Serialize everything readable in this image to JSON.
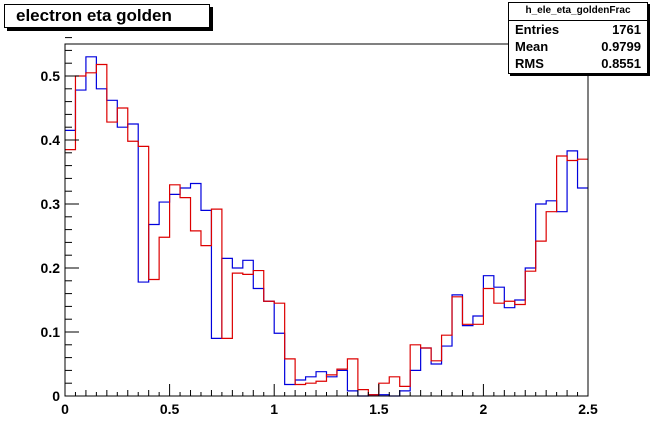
{
  "title": "electron eta golden",
  "stats": {
    "name": "h_ele_eta_goldenFrac",
    "rows": [
      {
        "label": "Entries",
        "value": "1761"
      },
      {
        "label": "Mean",
        "value": "0.9799"
      },
      {
        "label": "RMS",
        "value": "0.8551"
      }
    ]
  },
  "colors": {
    "blue": "#0000dd",
    "red": "#dd0000",
    "frame": "#000000"
  },
  "chart_data": {
    "type": "step-histogram",
    "title": "electron eta golden",
    "xlabel": "",
    "ylabel": "",
    "xlim": [
      0,
      2.5
    ],
    "ylim": [
      0,
      0.55
    ],
    "grid": false,
    "bin_width": 0.05,
    "x_ticks": [
      {
        "v": 0,
        "label": "0"
      },
      {
        "v": 0.5,
        "label": "0.5"
      },
      {
        "v": 1,
        "label": "1"
      },
      {
        "v": 1.5,
        "label": "1.5"
      },
      {
        "v": 2,
        "label": "2"
      },
      {
        "v": 2.5,
        "label": "2.5"
      }
    ],
    "y_ticks": [
      {
        "v": 0,
        "label": "0"
      },
      {
        "v": 0.1,
        "label": "0.1"
      },
      {
        "v": 0.2,
        "label": "0.2"
      },
      {
        "v": 0.3,
        "label": "0.3"
      },
      {
        "v": 0.4,
        "label": "0.4"
      },
      {
        "v": 0.5,
        "label": "0.5"
      }
    ],
    "series": [
      {
        "color": "#0000dd",
        "values": [
          0.415,
          0.478,
          0.53,
          0.48,
          0.462,
          0.42,
          0.425,
          0.178,
          0.268,
          0.303,
          0.315,
          0.325,
          0.332,
          0.29,
          0.09,
          0.215,
          0.2,
          0.212,
          0.168,
          0.148,
          0.098,
          0.018,
          0.025,
          0.03,
          0.038,
          0.03,
          0.04,
          0.008,
          0.0,
          0.002,
          0.002,
          0.0,
          0.008,
          0.04,
          0.075,
          0.05,
          0.078,
          0.158,
          0.11,
          0.125,
          0.188,
          0.17,
          0.138,
          0.15,
          0.2,
          0.3,
          0.305,
          0.288,
          0.383,
          0.325
        ]
      },
      {
        "color": "#dd0000",
        "values": [
          0.385,
          0.5,
          0.505,
          0.518,
          0.428,
          0.45,
          0.398,
          0.39,
          0.182,
          0.248,
          0.33,
          0.31,
          0.258,
          0.235,
          0.292,
          0.09,
          0.192,
          0.19,
          0.196,
          0.148,
          0.145,
          0.058,
          0.018,
          0.02,
          0.023,
          0.033,
          0.042,
          0.058,
          0.01,
          0.002,
          0.02,
          0.03,
          0.015,
          0.08,
          0.075,
          0.055,
          0.095,
          0.155,
          0.112,
          0.112,
          0.168,
          0.145,
          0.148,
          0.143,
          0.195,
          0.242,
          0.288,
          0.375,
          0.368,
          0.37
        ]
      }
    ]
  }
}
